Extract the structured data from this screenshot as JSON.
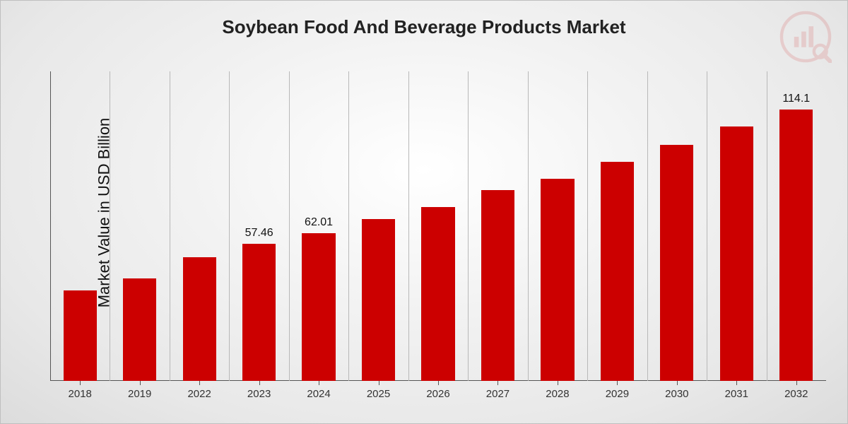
{
  "chart": {
    "type": "bar",
    "title": "Soybean Food And Beverage Products Market",
    "ylabel": "Market Value in USD Billion",
    "title_fontsize": 26,
    "ylabel_fontsize": 22,
    "xtick_fontsize": 15,
    "value_label_fontsize": 16,
    "bar_color": "#cc0000",
    "grid_color": "#b8b8b8",
    "axis_color": "#555555",
    "background": "radial-gradient",
    "ylim": [
      0,
      130
    ],
    "bar_width_ratio": 0.56,
    "categories": [
      "2018",
      "2019",
      "2022",
      "2023",
      "2024",
      "2025",
      "2026",
      "2027",
      "2028",
      "2029",
      "2030",
      "2031",
      "2032"
    ],
    "values": [
      38,
      43,
      52,
      57.46,
      62.01,
      68,
      73,
      80,
      85,
      92,
      99,
      107,
      114.1
    ],
    "value_labels": {
      "3": "57.46",
      "4": "62.01",
      "12": "114.1"
    }
  },
  "logo": {
    "name": "watermark-logo",
    "color": "#cc0000"
  }
}
